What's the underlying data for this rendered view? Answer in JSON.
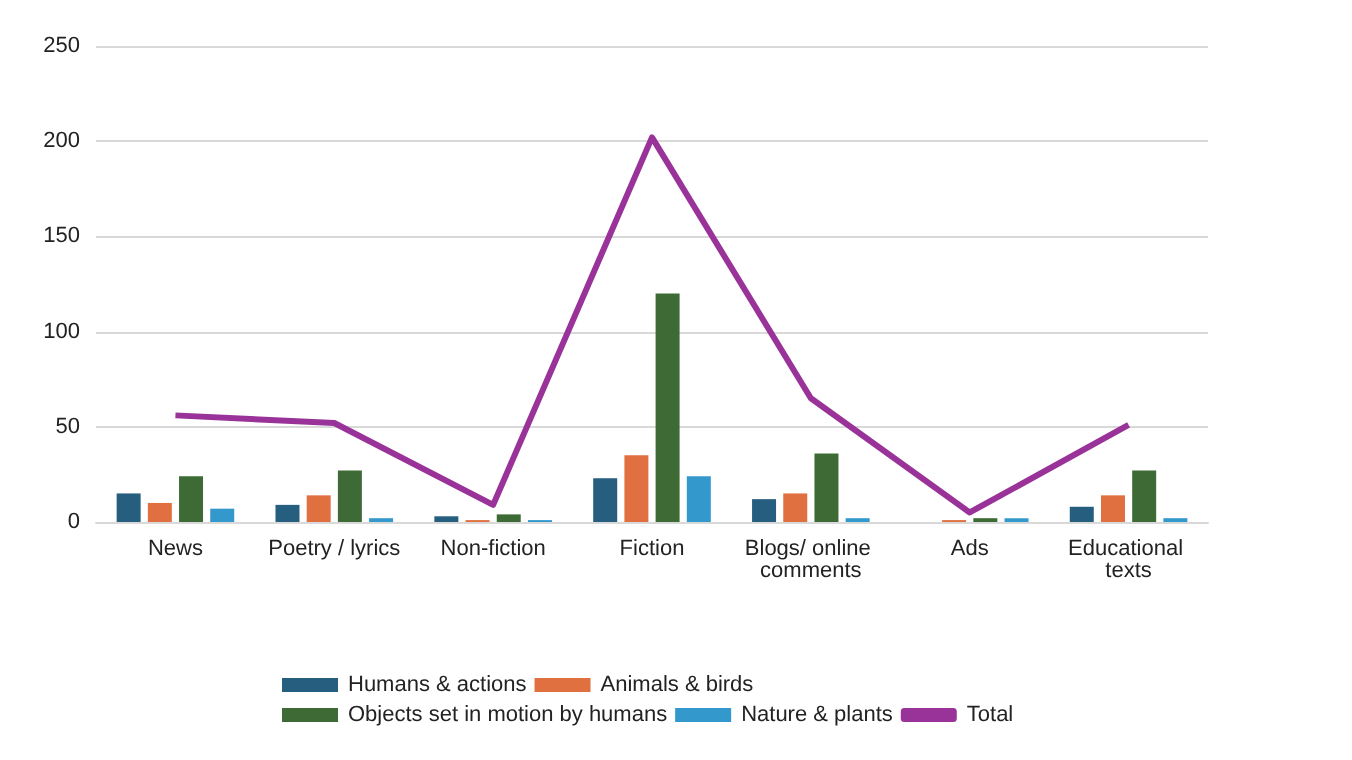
{
  "chart_data": {
    "type": "bar",
    "categories": [
      "News",
      "Poetry / lyrics",
      "Non-fiction",
      "Fiction",
      "Blogs/ online comments",
      "Ads",
      "Educational texts"
    ],
    "series": [
      {
        "name": "Humans & actions",
        "color": "#255e7e",
        "values": [
          15,
          9,
          3,
          23,
          12,
          0,
          8
        ]
      },
      {
        "name": "Animals & birds",
        "color": "#e07040",
        "values": [
          10,
          14,
          1,
          35,
          15,
          1,
          14
        ]
      },
      {
        "name": "Objects set in motion by humans",
        "color": "#3e6b35",
        "values": [
          24,
          27,
          4,
          120,
          36,
          2,
          27
        ]
      },
      {
        "name": "Nature & plants",
        "color": "#3399cc",
        "values": [
          7,
          2,
          1,
          24,
          2,
          2,
          2
        ]
      },
      {
        "name": "Total",
        "type": "line",
        "color": "#993399",
        "values": [
          56,
          52,
          9,
          202,
          65,
          5,
          51
        ]
      }
    ],
    "ylim": [
      0,
      250
    ],
    "yticks": [
      0,
      50,
      100,
      150,
      200,
      250
    ],
    "grid": "y",
    "legend": "bottom",
    "marker": "none"
  }
}
